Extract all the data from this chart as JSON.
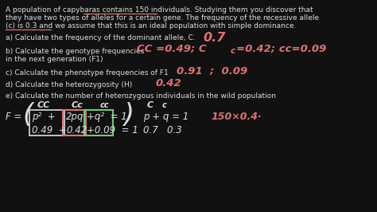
{
  "background_color": "#111111",
  "WHITE": "#dedede",
  "PINK": "#e07070",
  "GREEN": "#70c870",
  "figsize": [
    4.74,
    2.66
  ],
  "dpi": 100,
  "intro1": "A population of capybaras contains 150 individuals. Studying them you discover that",
  "intro2": "they have two types of alleles for a certain gene. The frequency of the recessive allele",
  "intro3": "(c) is 0.3 and we assume that this is an ideal population with simple dominance.",
  "a_label": "a) Calculate the frequency of the dominant allele, C.",
  "a_ans": "0.7",
  "b_label1": "b) Calculate the genotype frequencies",
  "b_label2": "in the next generation (F1)",
  "b_ans1": "CC =0.49; C",
  "b_ans2": "c",
  "b_ans3": " =0.42; CC=0.09",
  "c_label": "c) Calculate the phenotype frequencies of F1",
  "c_ans": "0.91  ;  0.09",
  "d_label": "d) Calculate the heterozygosity (H)",
  "d_ans": "0.42",
  "e_label": "e) Calculate the number of heterozygous individuals in the wild population",
  "fs_body": 6.5,
  "fs_ans": 9.5,
  "fs_formula": 8.5,
  "fs_formula_sm": 6.5,
  "fs_paren": 24
}
